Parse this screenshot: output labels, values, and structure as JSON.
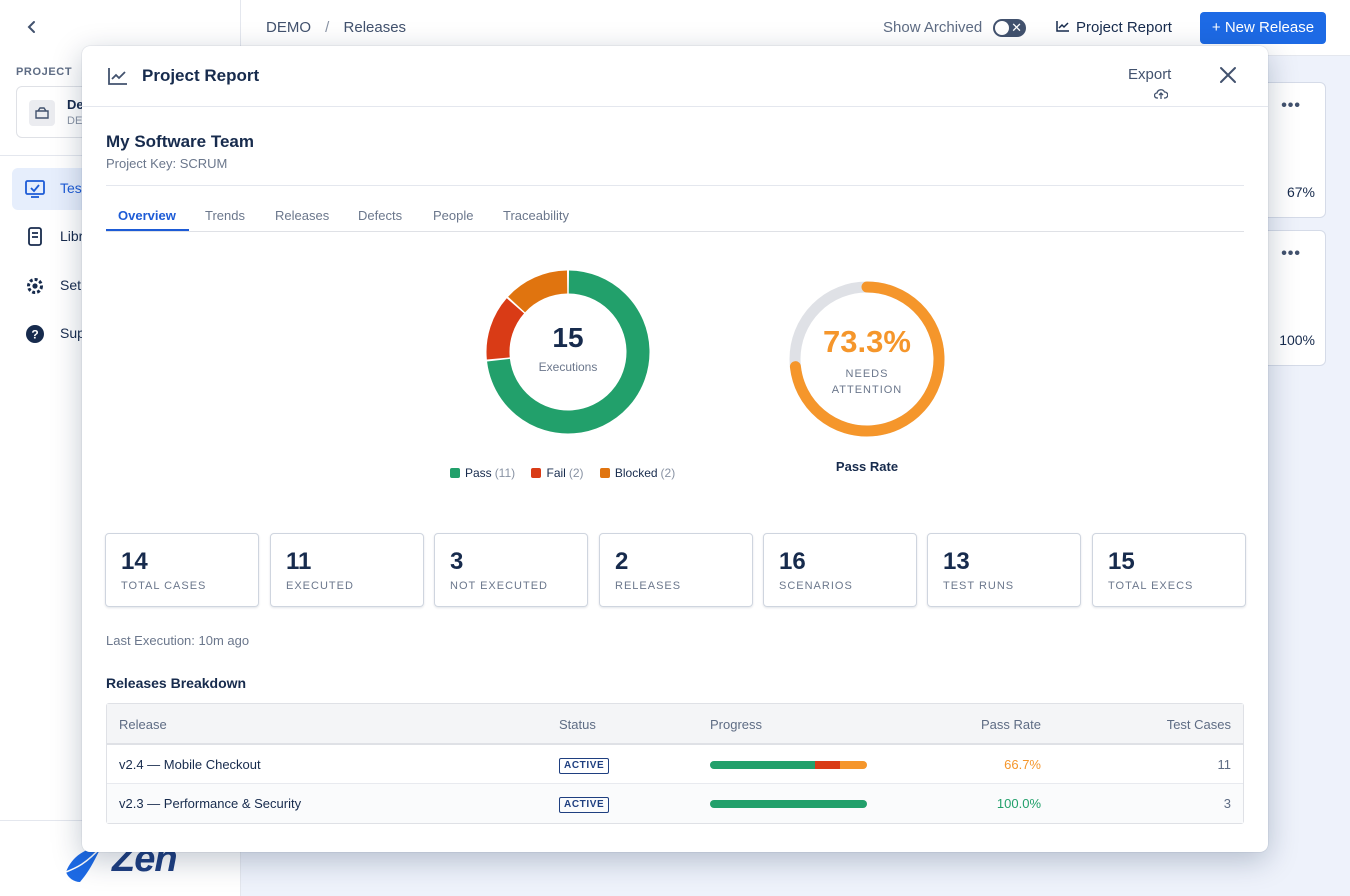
{
  "sidebar": {
    "project_label": "PROJECT",
    "project_name": "De",
    "project_key": "DE",
    "items": [
      {
        "label": "Tes",
        "icon": "test-icon"
      },
      {
        "label": "Libr",
        "icon": "library-icon"
      },
      {
        "label": "Set",
        "icon": "gear-icon"
      },
      {
        "label": "Sup",
        "icon": "help-icon"
      }
    ],
    "logo_text": "Zen"
  },
  "topbar": {
    "breadcrumb": [
      "DEMO",
      "/",
      "Releases"
    ],
    "show_archived_label": "Show Archived",
    "project_report_label": "Project Report",
    "new_release_label": "+ New Release"
  },
  "background_cards": [
    {
      "percent": "67%"
    },
    {
      "percent": "100%"
    }
  ],
  "modal": {
    "title": "Project Report",
    "export_label": "Export",
    "team_name": "My Software Team",
    "project_key": "Project Key: SCRUM",
    "tabs": [
      "Overview",
      "Trends",
      "Releases",
      "Defects",
      "People",
      "Traceability"
    ],
    "active_tab": "Overview",
    "executions_total": "15",
    "executions_label": "Executions",
    "legend": [
      {
        "name": "Pass",
        "count": "(11)",
        "color": "#22a06b"
      },
      {
        "name": "Fail",
        "count": "(2)",
        "color": "#d93b16"
      },
      {
        "name": "Blocked",
        "count": "(2)",
        "color": "#e0740f"
      }
    ],
    "pass_rate_value": "73.3%",
    "pass_rate_status_line1": "NEEDS",
    "pass_rate_status_line2": "ATTENTION",
    "pass_rate_caption": "Pass Rate",
    "stats": [
      {
        "value": "14",
        "label": "TOTAL CASES"
      },
      {
        "value": "11",
        "label": "EXECUTED"
      },
      {
        "value": "3",
        "label": "NOT EXECUTED"
      },
      {
        "value": "2",
        "label": "RELEASES"
      },
      {
        "value": "16",
        "label": "SCENARIOS"
      },
      {
        "value": "13",
        "label": "TEST RUNS"
      },
      {
        "value": "15",
        "label": "TOTAL EXECS"
      }
    ],
    "last_execution": "Last Execution: 10m ago",
    "breakdown_title": "Releases Breakdown",
    "table": {
      "headers": [
        "Release",
        "Status",
        "Progress",
        "Pass Rate",
        "Test Cases"
      ],
      "rows": [
        {
          "release": "v2.4 — Mobile Checkout",
          "status": "ACTIVE",
          "progress": {
            "pass": 0.67,
            "fail": 0.16,
            "blocked": 0.17
          },
          "pass_rate": "66.7%",
          "pass_rate_color": "#f5962b",
          "test_cases": "11"
        },
        {
          "release": "v2.3 — Performance & Security",
          "status": "ACTIVE",
          "progress": {
            "pass": 1.0,
            "fail": 0,
            "blocked": 0
          },
          "pass_rate": "100.0%",
          "pass_rate_color": "#22a06b",
          "test_cases": "3"
        }
      ]
    }
  },
  "chart_data": [
    {
      "type": "pie",
      "title": "",
      "categories": [
        "Pass",
        "Fail",
        "Blocked"
      ],
      "values": [
        11,
        2,
        2
      ],
      "colors": [
        "#22a06b",
        "#d93b16",
        "#e0740f"
      ],
      "center_text": "15 Executions",
      "legend_placement": "bottom"
    },
    {
      "type": "pie",
      "title": "Pass Rate",
      "categories": [
        "Pass Rate",
        "Remaining"
      ],
      "values": [
        73.3,
        26.7
      ],
      "colors": [
        "#f5962b",
        "#dfe1e6"
      ],
      "center_text": "73.3%"
    }
  ]
}
